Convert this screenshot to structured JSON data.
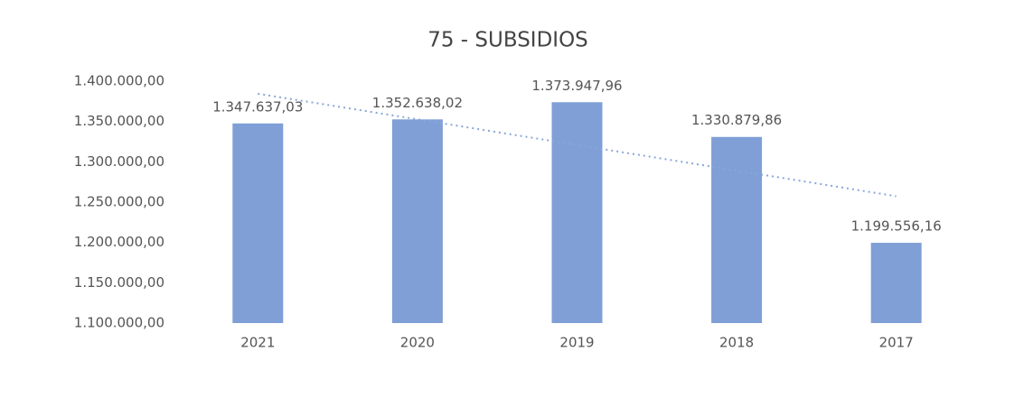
{
  "chart_data": {
    "type": "bar",
    "title": "75 - SUBSIDIOS",
    "categories": [
      "2021",
      "2020",
      "2019",
      "2018",
      "2017"
    ],
    "values": [
      1347637.03,
      1352638.02,
      1373947.96,
      1330879.86,
      1199556.16
    ],
    "value_labels": [
      "1.347.637,03",
      "1.352.638,02",
      "1.373.947,96",
      "1.330.879,86",
      "1.199.556,16"
    ],
    "color": "#7f9fd6",
    "ylim": [
      1100000,
      1400000
    ],
    "yticks": [
      {
        "value": 1100000,
        "label": "1.100.000,00"
      },
      {
        "value": 1150000,
        "label": "1.150.000,00"
      },
      {
        "value": 1200000,
        "label": "1.200.000,00"
      },
      {
        "value": 1250000,
        "label": "1.250.000,00"
      },
      {
        "value": 1300000,
        "label": "1.300.000,00"
      },
      {
        "value": 1350000,
        "label": "1.350.000,00"
      },
      {
        "value": 1400000,
        "label": "1.400.000,00"
      }
    ],
    "grid": false,
    "trendline": "linear"
  }
}
